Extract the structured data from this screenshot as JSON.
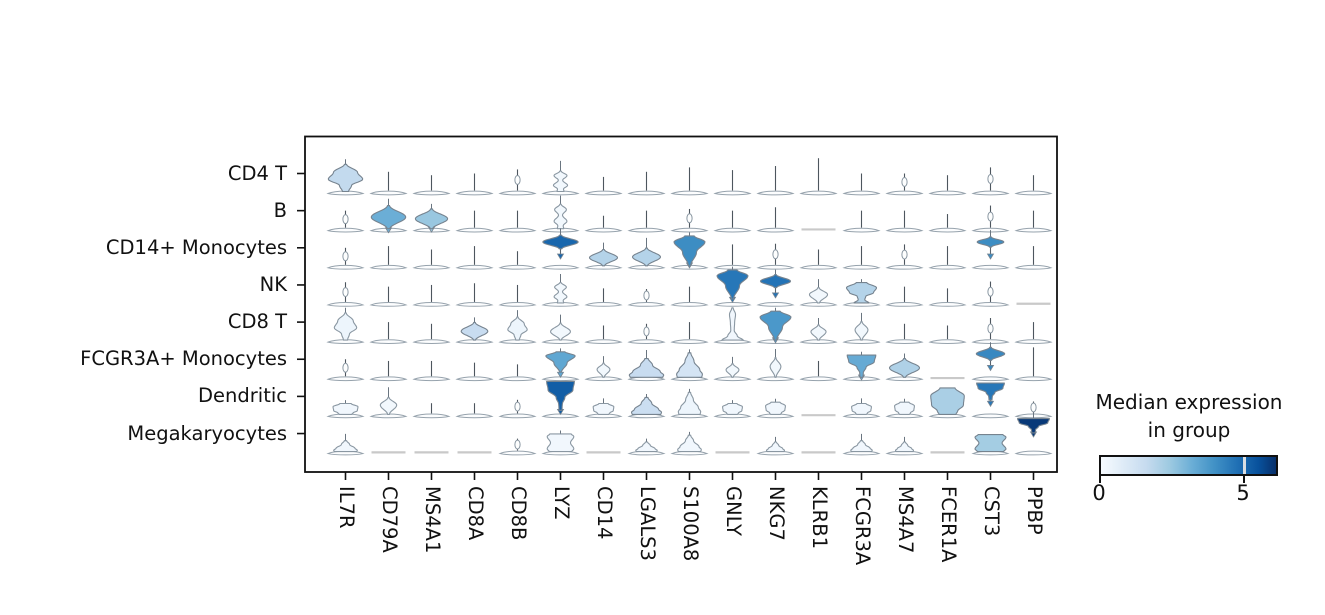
{
  "colorbar": {
    "title_line1": "Median expression",
    "title_line2": "in group",
    "tick_labels": [
      "0",
      "5"
    ],
    "tick_values": [
      0,
      5
    ],
    "vmin": 0,
    "vmax": 6.2,
    "colormap": "Blues"
  },
  "chart_data": {
    "type": "stacked_violin",
    "title": "",
    "rows": [
      "CD4 T",
      "B",
      "CD14+ Monocytes",
      "NK",
      "CD8 T",
      "FCGR3A+ Monocytes",
      "Dendritic",
      "Megakaryocytes"
    ],
    "columns": [
      "IL7R",
      "CD79A",
      "MS4A1",
      "CD8A",
      "CD8B",
      "LYZ",
      "CD14",
      "LGALS3",
      "S100A8",
      "GNLY",
      "NKG7",
      "KLRB1",
      "FCGR3A",
      "MS4A7",
      "FCER1A",
      "CST3",
      "PPBP"
    ],
    "legend_position": "right",
    "grid": false,
    "cell_format": "[shape, body_height_frac, body_width_frac, median_expression, y_offset_frac, tail_frac, spike_frac] ; spike/bead/flat = [shape, height_frac]",
    "cells": [
      [
        [
          "oni",
          0.8,
          0.8,
          1.6,
          0,
          0,
          0.15
        ],
        [
          "spike",
          0.55
        ],
        [
          "spike",
          0.45
        ],
        [
          "spike",
          0.5
        ],
        [
          "bead",
          0.62
        ],
        [
          "dd",
          0.6,
          0.55,
          0.15,
          0,
          0,
          0.3
        ],
        [
          "spike",
          0.4
        ],
        [
          "spike",
          0.55
        ],
        [
          "spike",
          0.68
        ],
        [
          "spike",
          0.6
        ],
        [
          "spike",
          0.72
        ],
        [
          "spike",
          0.95
        ],
        [
          "spike",
          0.5
        ],
        [
          "bead",
          0.5
        ],
        [
          "spike",
          0.45
        ],
        [
          "bead",
          0.68
        ],
        [
          "spike",
          0.45
        ]
      ],
      [
        [
          "bead",
          0.5
        ],
        [
          "dia",
          0.68,
          0.8,
          3.1,
          0,
          0.12,
          0.2
        ],
        [
          "dia",
          0.58,
          0.75,
          2.4,
          0,
          0.1,
          0.15
        ],
        [
          "spike",
          0.5
        ],
        [
          "spike",
          0.5
        ],
        [
          "dd",
          0.72,
          0.5,
          0.15,
          0,
          0,
          0.25
        ],
        [
          "spike",
          0.35
        ],
        [
          "spike",
          0.5
        ],
        [
          "bead",
          0.55
        ],
        [
          "spike",
          0.5
        ],
        [
          "spike",
          0.6
        ],
        [
          "flat",
          0
        ],
        [
          "spike",
          0.5
        ],
        [
          "spike",
          0.5
        ],
        [
          "spike",
          0.4
        ],
        [
          "bead",
          0.65
        ],
        [
          "spike",
          0.5
        ]
      ],
      [
        [
          "bead",
          0.5
        ],
        [
          "spike",
          0.55
        ],
        [
          "spike",
          0.45
        ],
        [
          "spike",
          0.55
        ],
        [
          "spike",
          0.4
        ],
        [
          "dia",
          0.4,
          0.82,
          4.9,
          0.5,
          0.3,
          0.2
        ],
        [
          "dia",
          0.48,
          0.65,
          1.9,
          0,
          0,
          0.2
        ],
        [
          "dia",
          0.52,
          0.65,
          1.9,
          0,
          0,
          0.3
        ],
        [
          "kite",
          0.88,
          0.72,
          4.0,
          0,
          0.06,
          0.1
        ],
        [
          "spike",
          0.6
        ],
        [
          "bead",
          0.62
        ],
        [
          "spike",
          0.45
        ],
        [
          "spike",
          0.55
        ],
        [
          "bead",
          0.6
        ],
        [
          "spike",
          0.55
        ],
        [
          "dia",
          0.3,
          0.62,
          4.0,
          0.55,
          0.35,
          0.2
        ],
        [
          "spike",
          0.55
        ]
      ],
      [
        [
          "bead",
          0.58
        ],
        [
          "spike",
          0.45
        ],
        [
          "spike",
          0.5
        ],
        [
          "spike",
          0.55
        ],
        [
          "spike",
          0.5
        ],
        [
          "dd",
          0.6,
          0.5,
          0.15,
          0,
          0,
          0.25
        ],
        [
          "spike",
          0.4
        ],
        [
          "bead",
          0.38
        ],
        [
          "spike",
          0.45
        ],
        [
          "kite",
          0.85,
          0.72,
          4.5,
          0.12,
          0.1,
          0.1
        ],
        [
          "dia",
          0.38,
          0.7,
          4.6,
          0.45,
          0.3,
          0.15
        ],
        [
          "tear",
          0.45,
          0.42,
          0.15,
          0,
          0,
          0.25
        ],
        [
          "mush",
          0.6,
          0.7,
          1.9,
          0,
          0,
          0.1
        ],
        [
          "spike",
          0.45
        ],
        [
          "spike",
          0.4
        ],
        [
          "bead",
          0.6
        ],
        [
          "flat",
          0
        ]
      ],
      [
        [
          "oni",
          0.8,
          0.52,
          0.3,
          0,
          0,
          0.15
        ],
        [
          "spike",
          0.5
        ],
        [
          "spike",
          0.45
        ],
        [
          "dia",
          0.52,
          0.62,
          1.5,
          0,
          0,
          0.15
        ],
        [
          "oni",
          0.68,
          0.45,
          0.3,
          0,
          0,
          0.2
        ],
        [
          "dia",
          0.5,
          0.46,
          0.15,
          0,
          0,
          0.25
        ],
        [
          "spike",
          0.4
        ],
        [
          "bead",
          0.45
        ],
        [
          "spike",
          0.5
        ],
        [
          "tall",
          0.95,
          0.5,
          0.2,
          0,
          0,
          0
        ],
        [
          "kite",
          0.85,
          0.72,
          3.7,
          0,
          0.08,
          0.1
        ],
        [
          "tear",
          0.45,
          0.35,
          0.15,
          0,
          0,
          0.2
        ],
        [
          "tear",
          0.55,
          0.3,
          0.15,
          0,
          0,
          0.25
        ],
        [
          "spike",
          0.45
        ],
        [
          "spike",
          0.4
        ],
        [
          "bead",
          0.62
        ],
        [
          "spike",
          0.5
        ]
      ],
      [
        [
          "bead",
          0.5
        ],
        [
          "spike",
          0.45
        ],
        [
          "spike",
          0.45
        ],
        [
          "spike",
          0.4
        ],
        [
          "spike",
          0.35
        ],
        [
          "kite",
          0.6,
          0.68,
          3.3,
          0.15,
          0.15,
          0.1
        ],
        [
          "tear",
          0.42,
          0.3,
          0.15,
          0,
          0,
          0.2
        ],
        [
          "bell",
          0.55,
          0.8,
          1.5,
          0,
          0,
          0.25
        ],
        [
          "bell",
          0.72,
          0.6,
          1.1,
          0,
          0,
          0.1
        ],
        [
          "tear",
          0.4,
          0.3,
          0.15,
          0,
          0,
          0.2
        ],
        [
          "tear",
          0.58,
          0.25,
          0.15,
          0,
          0,
          0.25
        ],
        [
          "spike",
          0.45
        ],
        [
          "fun",
          0.65,
          0.7,
          3.2,
          0,
          0.08,
          0.1
        ],
        [
          "dia",
          0.55,
          0.7,
          2.0,
          0,
          0,
          0.15
        ],
        [
          "flat",
          0
        ],
        [
          "dia",
          0.38,
          0.66,
          4.1,
          0.5,
          0.3,
          0.15
        ],
        [
          "spike",
          0.85
        ]
      ],
      [
        [
          "blob",
          0.32,
          0.58,
          0.2,
          0,
          0,
          0.1
        ],
        [
          "tear",
          0.5,
          0.38,
          0.15,
          0,
          0,
          0.3
        ],
        [
          "spike",
          0.3
        ],
        [
          "spike",
          0.3
        ],
        [
          "bead",
          0.4
        ],
        [
          "fun",
          0.85,
          0.68,
          5.1,
          0.12,
          0.12,
          0
        ],
        [
          "blob",
          0.32,
          0.48,
          0.2,
          0,
          0,
          0.15
        ],
        [
          "bell",
          0.5,
          0.7,
          1.4,
          0,
          0,
          0.1
        ],
        [
          "bell",
          0.65,
          0.52,
          0.3,
          0,
          0,
          0.1
        ],
        [
          "blob",
          0.32,
          0.46,
          0.2,
          0,
          0,
          0.1
        ],
        [
          "blob",
          0.36,
          0.46,
          0.2,
          0,
          0,
          0.1
        ],
        [
          "flat",
          0
        ],
        [
          "blob",
          0.32,
          0.46,
          0.2,
          0,
          0,
          0.15
        ],
        [
          "blob",
          0.36,
          0.46,
          0.2,
          0,
          0,
          0.1
        ],
        [
          "blob",
          0.78,
          0.78,
          2.1,
          0,
          0,
          0
        ],
        [
          "fun",
          0.5,
          0.68,
          4.5,
          0.42,
          0.18,
          0
        ],
        [
          "bead",
          0.35
        ]
      ],
      [
        [
          "bell",
          0.32,
          0.55,
          0.2,
          0,
          0,
          0.2
        ],
        [
          "flat",
          0
        ],
        [
          "flat",
          0
        ],
        [
          "flat",
          0
        ],
        [
          "bead",
          0.35
        ],
        [
          "rect",
          0.52,
          0.62,
          0.2,
          0,
          0,
          0.1
        ],
        [
          "flat",
          0
        ],
        [
          "bell",
          0.28,
          0.5,
          0.2,
          0,
          0,
          0.1
        ],
        [
          "bell",
          0.48,
          0.55,
          0.2,
          0,
          0,
          0.1
        ],
        [
          "flat",
          0
        ],
        [
          "bell",
          0.28,
          0.42,
          0.2,
          0,
          0,
          0.15
        ],
        [
          "flat",
          0
        ],
        [
          "bell",
          0.32,
          0.5,
          0.2,
          0,
          0,
          0.2
        ],
        [
          "bell",
          0.28,
          0.42,
          0.2,
          0,
          0,
          0.15
        ],
        [
          "flat",
          0
        ],
        [
          "rect",
          0.5,
          0.72,
          2.2,
          0,
          0,
          0
        ],
        [
          "fun",
          0.42,
          0.78,
          6.0,
          0.55,
          0.12,
          0.2
        ]
      ]
    ]
  }
}
